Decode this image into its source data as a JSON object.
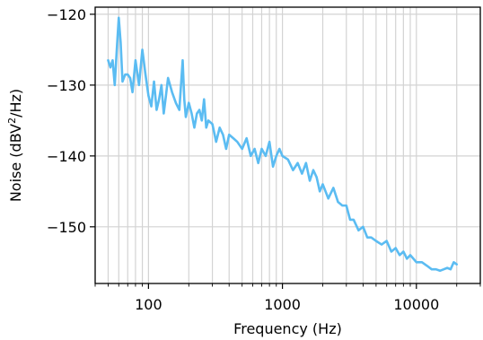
{
  "chart_data": {
    "type": "line",
    "title": "",
    "xlabel": "Frequency (Hz)",
    "ylabel": {
      "pre": "Noise (dBV",
      "sup": "2",
      "post": "/Hz)"
    },
    "xscale": "log",
    "xlim": [
      40,
      30000
    ],
    "ylim": [
      -158,
      -119
    ],
    "xticks": [
      {
        "value": 100,
        "label": "100"
      },
      {
        "value": 1000,
        "label": "1000"
      },
      {
        "value": 10000,
        "label": "10000"
      }
    ],
    "yticks": [
      {
        "value": -120,
        "label": "−120"
      },
      {
        "value": -130,
        "label": "−130"
      },
      {
        "value": -140,
        "label": "−140"
      },
      {
        "value": -150,
        "label": "−150"
      }
    ],
    "grid": true,
    "grid_color": "#d3d3d3",
    "series": [
      {
        "color": "#5bbcf2",
        "x": [
          50,
          52,
          54,
          56,
          58,
          60,
          62,
          64,
          67,
          70,
          73,
          76,
          80,
          85,
          90,
          95,
          100,
          105,
          110,
          115,
          120,
          125,
          130,
          135,
          140,
          150,
          160,
          170,
          180,
          185,
          190,
          200,
          210,
          220,
          230,
          240,
          250,
          260,
          270,
          280,
          300,
          320,
          340,
          360,
          380,
          400,
          430,
          460,
          500,
          540,
          580,
          620,
          660,
          700,
          750,
          800,
          850,
          900,
          950,
          1000,
          1100,
          1200,
          1300,
          1400,
          1500,
          1600,
          1700,
          1800,
          1900,
          2000,
          2200,
          2400,
          2600,
          2800,
          3000,
          3200,
          3400,
          3700,
          4000,
          4300,
          4600,
          5000,
          5500,
          6000,
          6500,
          7000,
          7500,
          8000,
          8500,
          9000,
          9500,
          10000,
          11000,
          12000,
          13000,
          14000,
          15000,
          16000,
          17000,
          18000,
          19000,
          20000
        ],
        "y": [
          -126.5,
          -127.5,
          -126.5,
          -130,
          -125,
          -120.5,
          -124,
          -129.5,
          -128.5,
          -128.5,
          -129,
          -131,
          -126.5,
          -130,
          -125,
          -128.5,
          -131.5,
          -133,
          -129.5,
          -133.5,
          -132,
          -130,
          -134,
          -131.5,
          -129,
          -131,
          -132.5,
          -133.5,
          -126.5,
          -132,
          -134.5,
          -132.5,
          -134,
          -136,
          -134,
          -133.5,
          -135,
          -132,
          -136,
          -135,
          -135.5,
          -138,
          -136,
          -137,
          -139,
          -137,
          -137.5,
          -138,
          -139,
          -137.5,
          -140,
          -139,
          -141,
          -139,
          -140,
          -138,
          -141.5,
          -140,
          -139,
          -140,
          -140.5,
          -142,
          -141,
          -142.5,
          -141,
          -143.5,
          -142,
          -143,
          -145,
          -144,
          -146,
          -144.5,
          -146.5,
          -147,
          -147,
          -149,
          -149,
          -150.5,
          -150,
          -151.5,
          -151.5,
          -152,
          -152.5,
          -152,
          -153.5,
          -153,
          -154,
          -153.5,
          -154.5,
          -154,
          -154.5,
          -155,
          -155,
          -155.5,
          -156,
          -156,
          -156.2,
          -156,
          -155.8,
          -156,
          -155,
          -155.3
        ]
      }
    ]
  }
}
